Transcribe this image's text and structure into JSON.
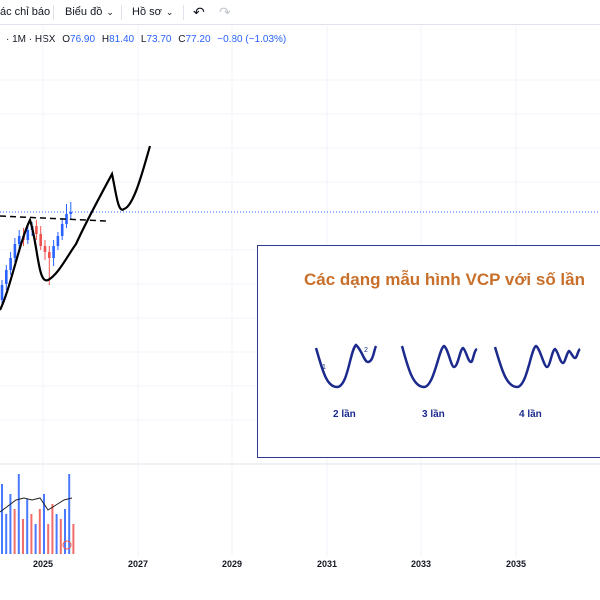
{
  "toolbar": {
    "indicators_label": "ác chỉ báo",
    "chart_type_label": "Biểu đồ",
    "profile_label": "Hồ sơ",
    "undo_icon": "undo-icon",
    "redo_icon": "redo-icon"
  },
  "legend": {
    "interval": "· 1M · HSX",
    "open_label": "O",
    "open": "76.90",
    "high_label": "H",
    "high": "81.40",
    "low_label": "L",
    "low": "73.70",
    "close_label": "C",
    "close": "77.20",
    "change": "−0.80 (−1.03%)"
  },
  "callout": {
    "title": "Các dạng mẫu hình VCP với số lần",
    "patterns": [
      {
        "label": "2 lần",
        "marks": [
          "1",
          "2"
        ]
      },
      {
        "label": "3 lần"
      },
      {
        "label": "4 lần"
      }
    ]
  },
  "chart_data": {
    "type": "candlestick",
    "interval": "1M",
    "exchange": "HSX",
    "last_bar": {
      "open": 76.9,
      "high": 81.4,
      "low": 73.7,
      "close": 77.2,
      "change": -0.8,
      "change_pct": -1.03
    },
    "x_axis_ticks": [
      "2025",
      "2027",
      "2029",
      "2031",
      "2033",
      "2035"
    ],
    "annotation": "Các dạng mẫu hình VCP với số lần",
    "pattern_examples": [
      "2 lần",
      "3 lần",
      "4 lần"
    ]
  },
  "colors": {
    "up": "#2962ff",
    "down": "#ef5350",
    "callout_title": "#c8702b",
    "pattern_stroke": "#1b2a8c"
  }
}
